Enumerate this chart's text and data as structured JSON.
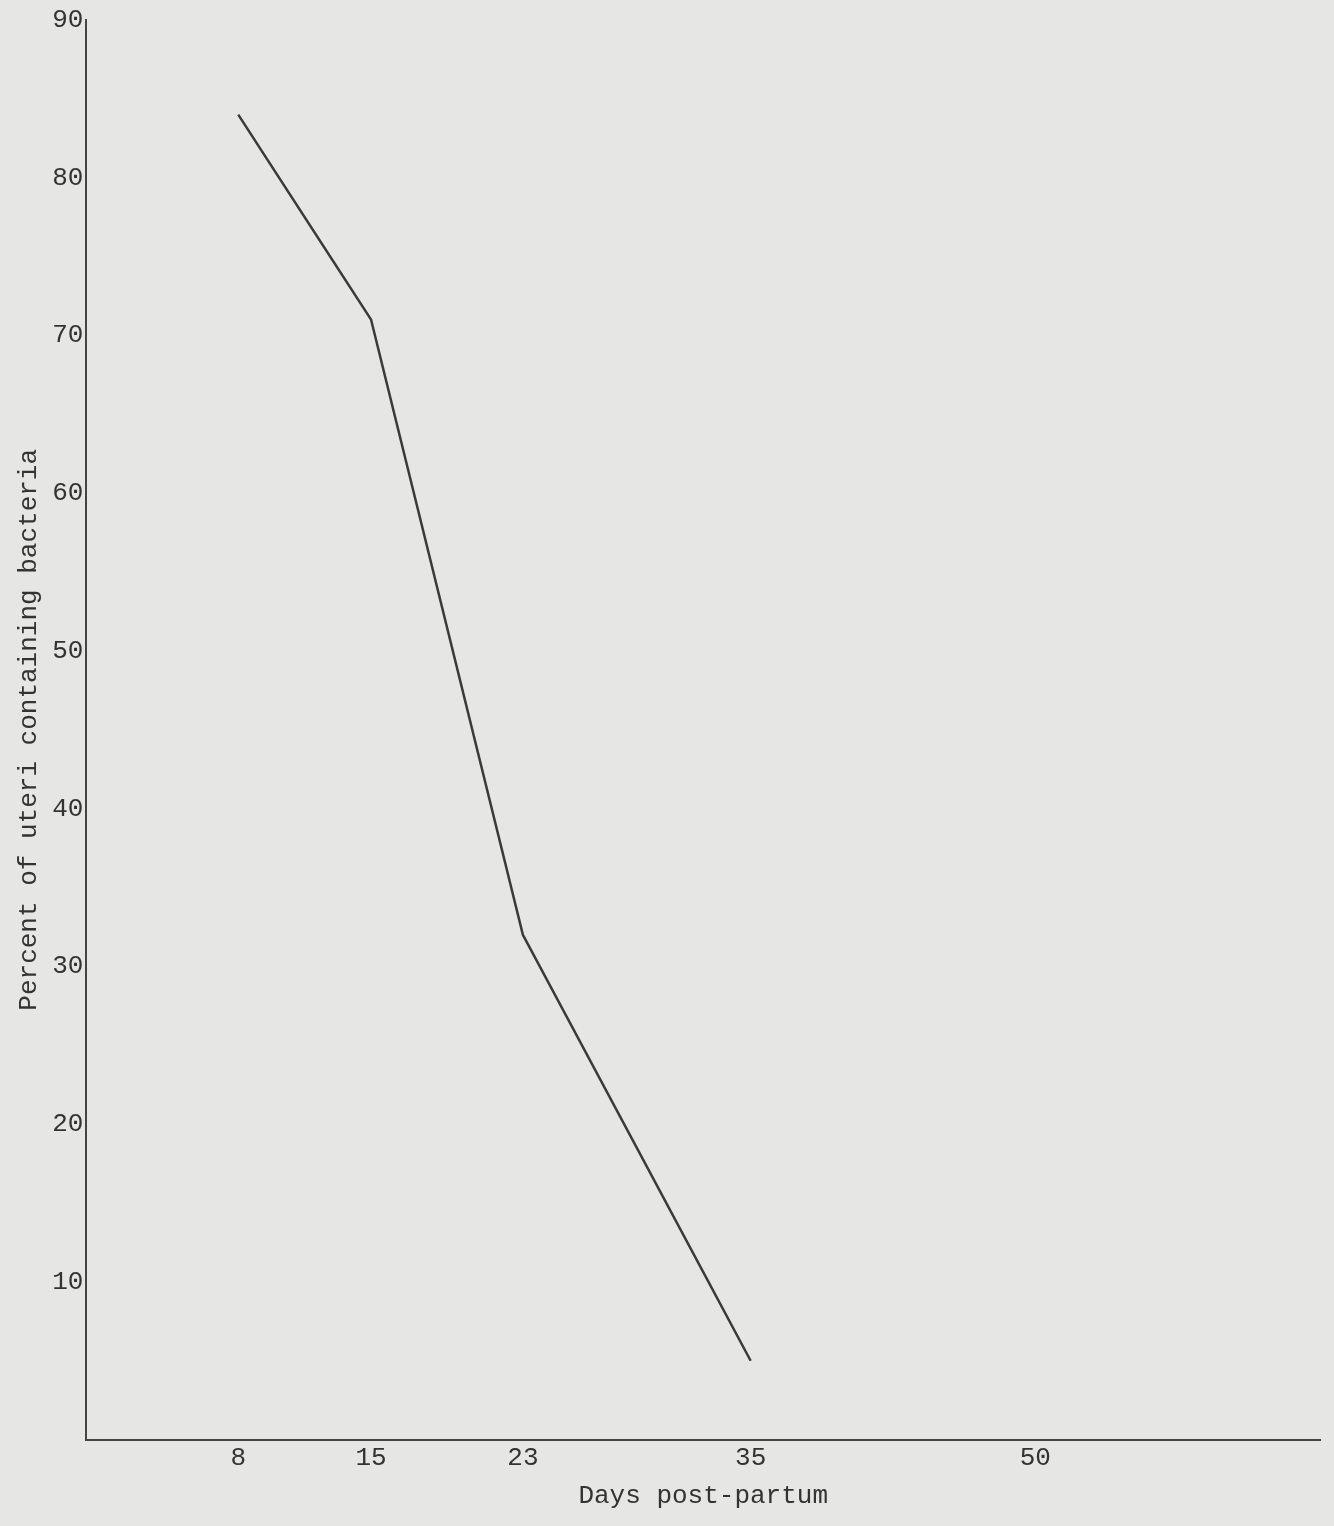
{
  "chart_data": {
    "type": "line",
    "xlabel": "Days post-partum",
    "ylabel": "Percent of uteri containing bacteria",
    "x": [
      8,
      15,
      23,
      35
    ],
    "series": [
      {
        "color": "#3a3a3a",
        "values": [
          84,
          71,
          32,
          5
        ]
      }
    ],
    "xlim": [
      0,
      65
    ],
    "xticks": [
      8,
      15,
      23,
      35,
      50
    ],
    "ylim": [
      0,
      90
    ],
    "yticks": [
      10,
      20,
      30,
      40,
      50,
      60,
      70,
      80,
      90
    ],
    "grid": false,
    "legend": false,
    "marker": "none",
    "line_style": "solid"
  }
}
